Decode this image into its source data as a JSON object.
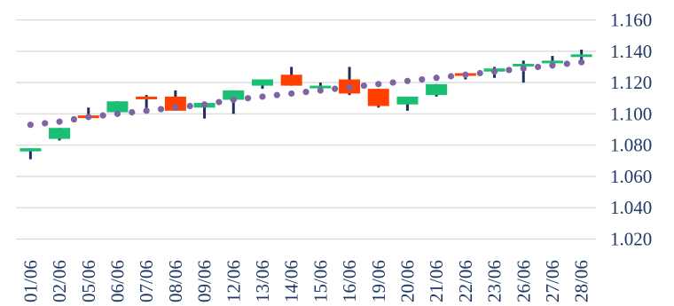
{
  "chart_data": {
    "type": "candlestick",
    "title": "",
    "xlabel": "",
    "ylabel": "",
    "ylim": [
      1.01,
      1.165
    ],
    "y_ticks": [
      "1.160",
      "1.140",
      "1.120",
      "1.100",
      "1.080",
      "1.060",
      "1.040",
      "1.020"
    ],
    "y_tick_values": [
      1.16,
      1.14,
      1.12,
      1.1,
      1.08,
      1.06,
      1.04,
      1.02
    ],
    "grid": true,
    "y_axis_side": "right",
    "colors": {
      "up": "#19c073",
      "down": "#ff4000",
      "wick": "#1f2f5c",
      "trend": "#8064a2",
      "grid": "#d9d9d9",
      "text": "#1f3864"
    },
    "categories": [
      "01/06",
      "02/06",
      "05/06",
      "06/06",
      "07/06",
      "08/06",
      "09/06",
      "12/06",
      "13/06",
      "14/06",
      "15/06",
      "16/06",
      "19/06",
      "20/06",
      "21/06",
      "22/06",
      "23/06",
      "26/06",
      "27/06",
      "28/06"
    ],
    "series": [
      {
        "type": "ohlc",
        "open": [
          1.076,
          1.084,
          1.099,
          1.101,
          1.111,
          1.111,
          1.104,
          1.109,
          1.118,
          1.125,
          1.117,
          1.122,
          1.116,
          1.106,
          1.112,
          1.126,
          1.127,
          1.131,
          1.133,
          1.137
        ],
        "close": [
          1.078,
          1.091,
          1.098,
          1.108,
          1.11,
          1.102,
          1.107,
          1.115,
          1.122,
          1.118,
          1.118,
          1.113,
          1.105,
          1.111,
          1.119,
          1.125,
          1.129,
          1.132,
          1.134,
          1.138
        ],
        "high": [
          1.078,
          1.091,
          1.104,
          1.108,
          1.112,
          1.115,
          1.107,
          1.115,
          1.122,
          1.13,
          1.12,
          1.13,
          1.116,
          1.111,
          1.119,
          1.126,
          1.13,
          1.134,
          1.137,
          1.141
        ],
        "low": [
          1.071,
          1.083,
          1.097,
          1.1,
          1.102,
          1.102,
          1.097,
          1.1,
          1.116,
          1.118,
          1.113,
          1.112,
          1.104,
          1.102,
          1.111,
          1.122,
          1.123,
          1.12,
          1.129,
          1.133
        ]
      },
      {
        "type": "dotted-line",
        "values": [
          1.093,
          1.095,
          1.098,
          1.1,
          1.102,
          1.104,
          1.106,
          1.109,
          1.111,
          1.113,
          1.115,
          1.117,
          1.119,
          1.121,
          1.123,
          1.125,
          1.127,
          1.129,
          1.131,
          1.133
        ]
      }
    ]
  }
}
